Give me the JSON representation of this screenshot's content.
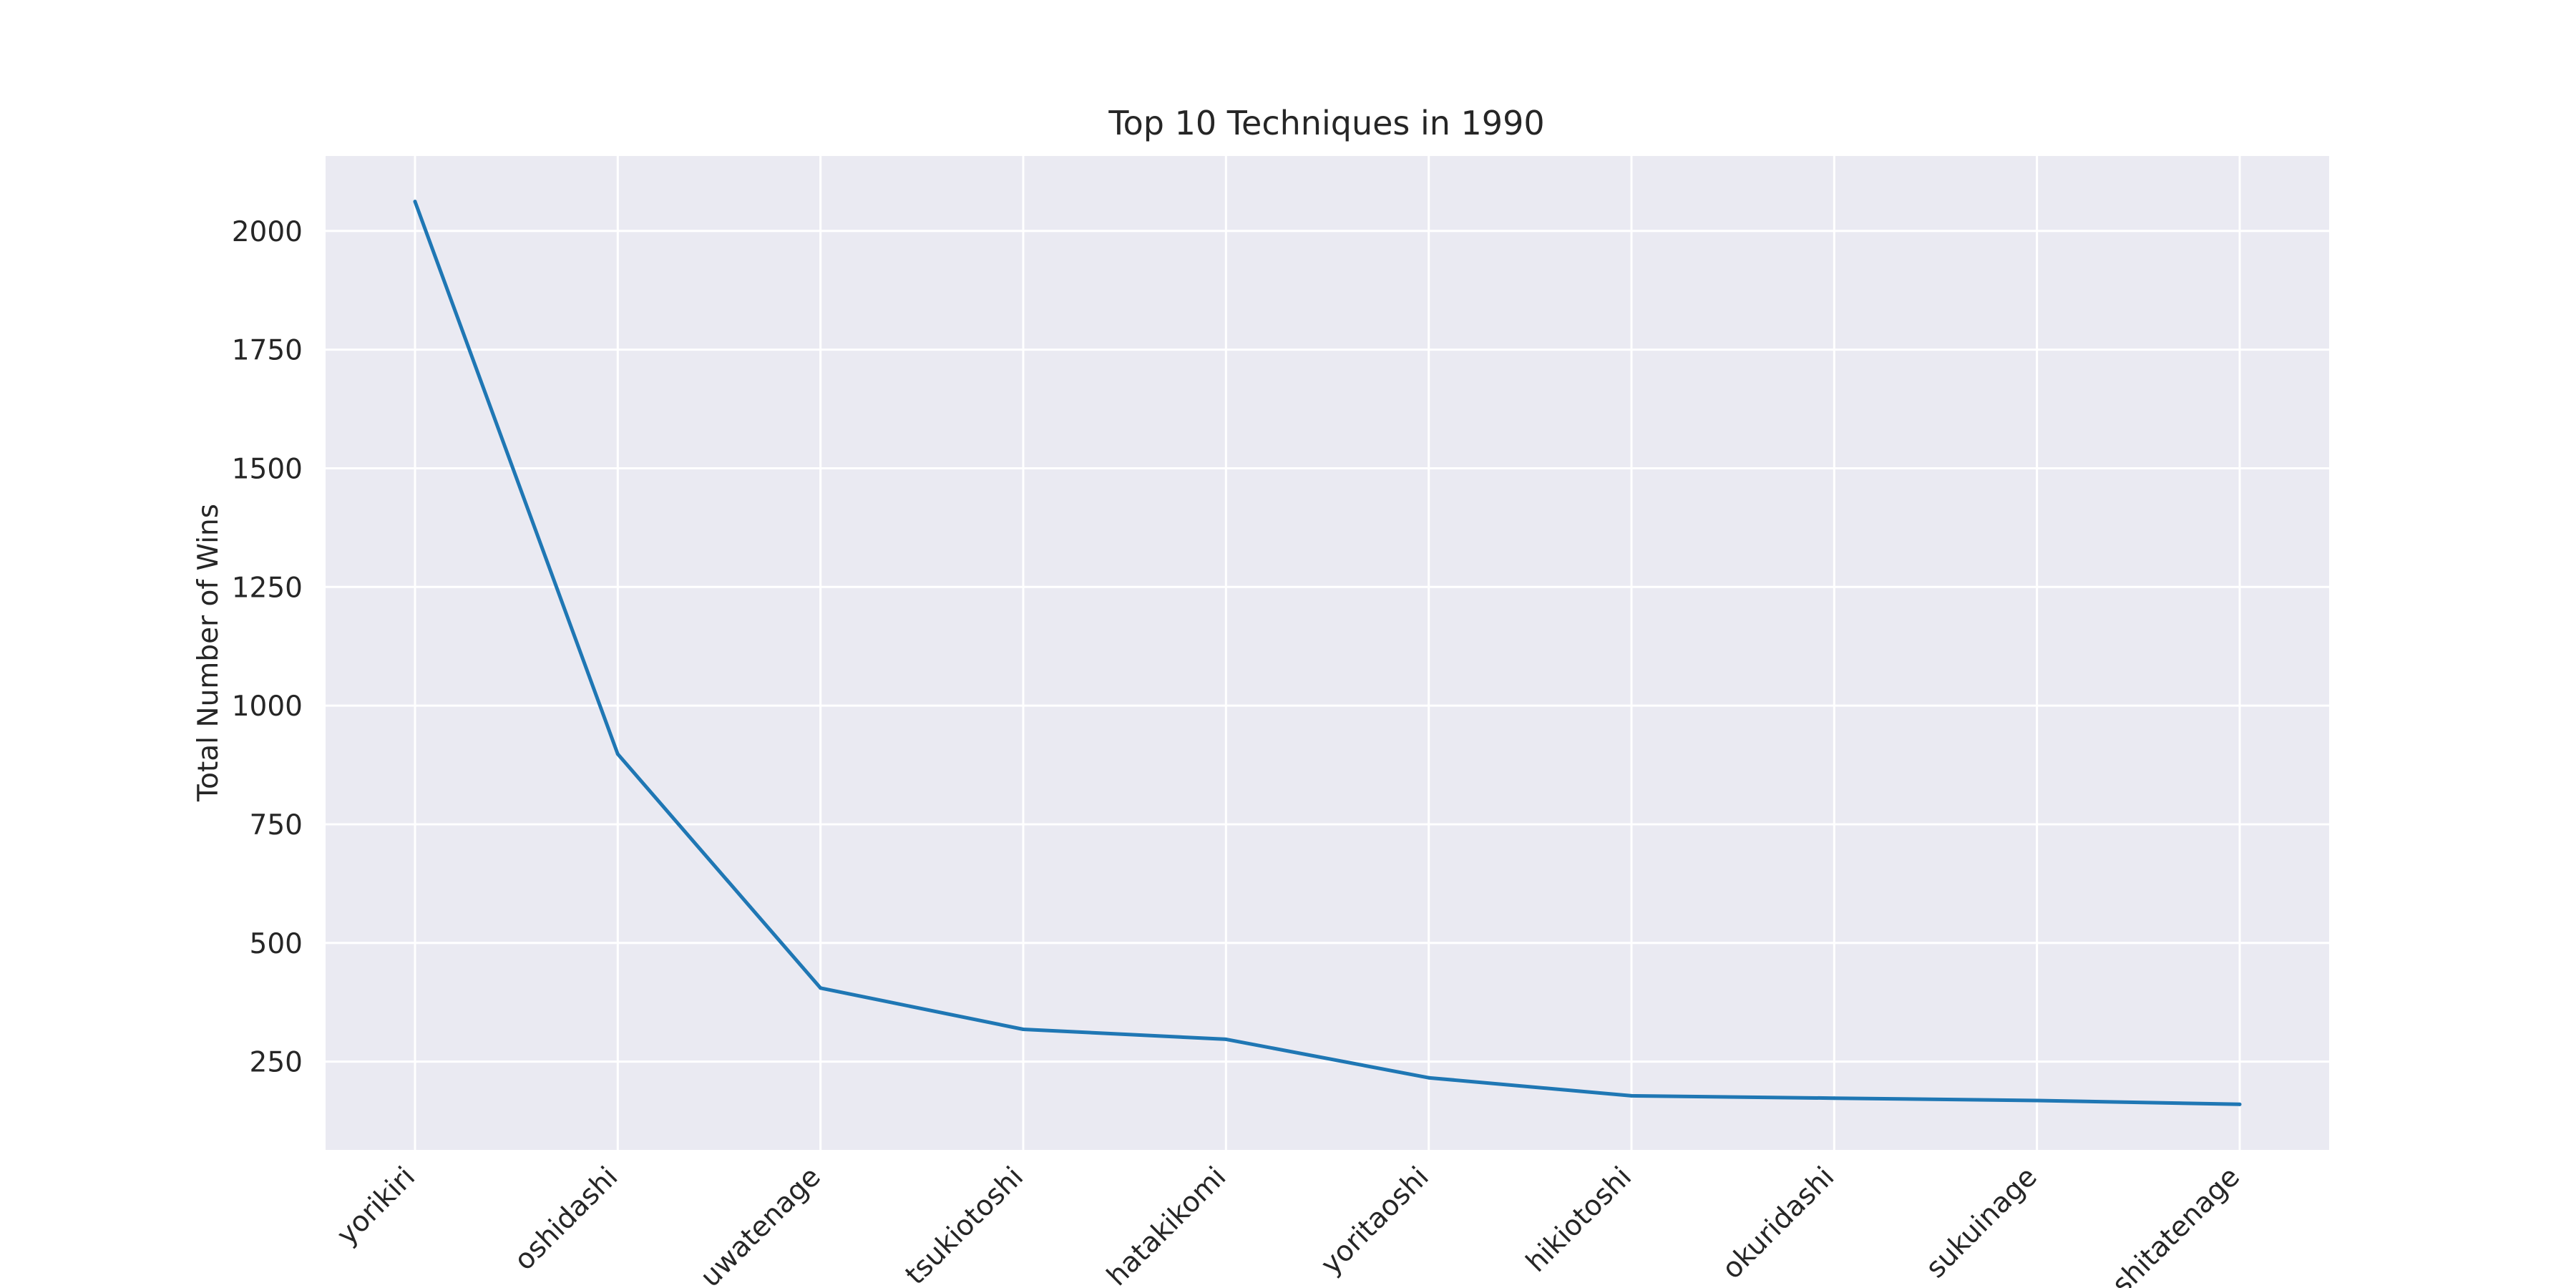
{
  "chart_data": {
    "type": "line",
    "title": "Top 10 Techniques in 1990",
    "xlabel": "",
    "ylabel": "Total Number of Wins",
    "categories": [
      "yorikiri",
      "oshidashi",
      "uwatenage",
      "tsukiotoshi",
      "hatakikomi",
      "yoritaoshi",
      "hikiotoshi",
      "okuridashi",
      "sukuinage",
      "shitatenage"
    ],
    "series": [
      {
        "values": [
          2062,
          898,
          405,
          318,
          297,
          216,
          178,
          173,
          168,
          160
        ],
        "color": "#1f77b4"
      }
    ],
    "yticks": [
      250,
      500,
      750,
      1000,
      1250,
      1500,
      1750,
      2000
    ],
    "ylim": [
      64,
      2158
    ],
    "grid": true,
    "legend": "none"
  },
  "colors": {
    "plot_background": "#eaeaf2",
    "grid": "#ffffff",
    "text": "#262626"
  }
}
